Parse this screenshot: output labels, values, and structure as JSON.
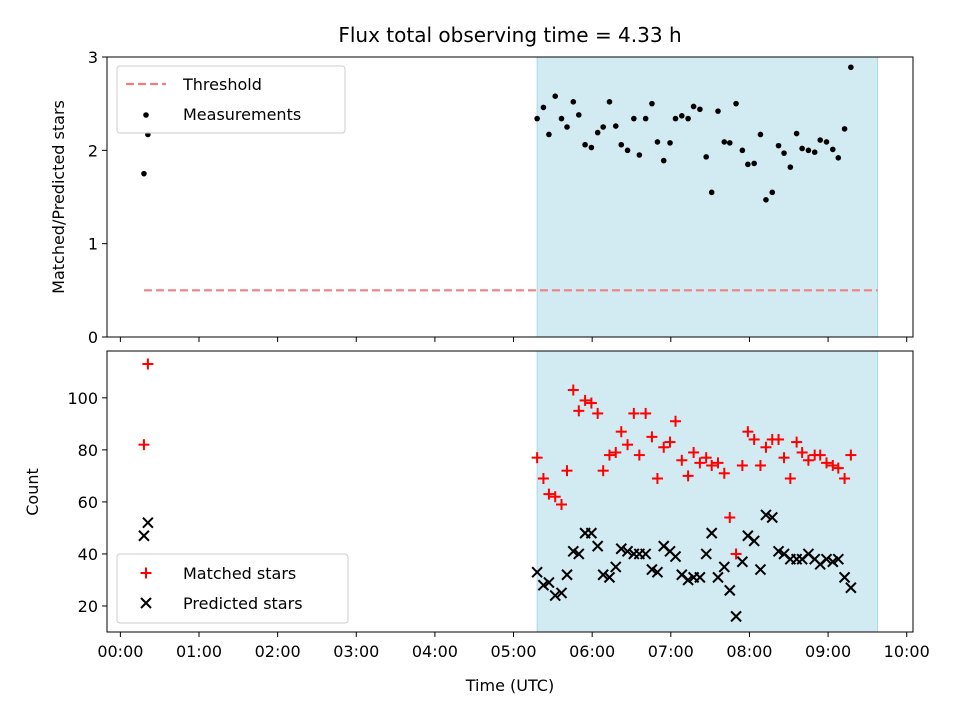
{
  "title": "Flux total observing time = 4.33 h",
  "colors": {
    "threshold": "#f08080",
    "measurement": "#000000",
    "matched": "#ff0000",
    "predicted": "#000000",
    "shade": "#add8e6"
  },
  "chart_data": [
    {
      "type": "scatter",
      "ylabel": "Matched/Predicted stars",
      "xlim": [
        -0.17,
        10.08
      ],
      "ylim": [
        0,
        3
      ],
      "yticks": [
        0,
        1,
        2,
        3
      ],
      "shaded_x_range": [
        5.3,
        9.63
      ],
      "legend": "top-left",
      "threshold": {
        "name": "Threshold",
        "y": 0.5,
        "x": [
          0.3,
          9.63
        ]
      },
      "series": [
        {
          "name": "Measurements",
          "points": [
            [
              0.3,
              1.75
            ],
            [
              0.35,
              2.17
            ],
            [
              5.3,
              2.34
            ],
            [
              5.38,
              2.46
            ],
            [
              5.45,
              2.17
            ],
            [
              5.53,
              2.58
            ],
            [
              5.61,
              2.34
            ],
            [
              5.68,
              2.25
            ],
            [
              5.76,
              2.52
            ],
            [
              5.83,
              2.38
            ],
            [
              5.91,
              2.06
            ],
            [
              5.99,
              2.03
            ],
            [
              6.07,
              2.19
            ],
            [
              6.14,
              2.25
            ],
            [
              6.22,
              2.52
            ],
            [
              6.3,
              2.26
            ],
            [
              6.37,
              2.06
            ],
            [
              6.45,
              2.0
            ],
            [
              6.53,
              2.34
            ],
            [
              6.6,
              1.95
            ],
            [
              6.68,
              2.34
            ],
            [
              6.76,
              2.5
            ],
            [
              6.83,
              2.09
            ],
            [
              6.91,
              1.89
            ],
            [
              6.99,
              2.08
            ],
            [
              7.06,
              2.34
            ],
            [
              7.14,
              2.37
            ],
            [
              7.22,
              2.34
            ],
            [
              7.29,
              2.47
            ],
            [
              7.37,
              2.44
            ],
            [
              7.45,
              1.93
            ],
            [
              7.52,
              1.55
            ],
            [
              7.6,
              2.42
            ],
            [
              7.68,
              2.09
            ],
            [
              7.75,
              2.08
            ],
            [
              7.83,
              2.5
            ],
            [
              7.91,
              2.0
            ],
            [
              7.98,
              1.85
            ],
            [
              8.06,
              1.86
            ],
            [
              8.14,
              2.17
            ],
            [
              8.21,
              1.47
            ],
            [
              8.29,
              1.55
            ],
            [
              8.37,
              2.05
            ],
            [
              8.44,
              1.97
            ],
            [
              8.52,
              1.82
            ],
            [
              8.6,
              2.18
            ],
            [
              8.67,
              2.02
            ],
            [
              8.75,
              2.0
            ],
            [
              8.83,
              1.98
            ],
            [
              8.9,
              2.11
            ],
            [
              8.98,
              2.09
            ],
            [
              9.06,
              2.01
            ],
            [
              9.13,
              1.92
            ],
            [
              9.21,
              2.23
            ],
            [
              9.29,
              2.89
            ]
          ]
        }
      ]
    },
    {
      "type": "scatter",
      "xlabel": "Time (UTC)",
      "ylabel": "Count",
      "xlim": [
        -0.17,
        10.08
      ],
      "ylim": [
        10,
        118
      ],
      "yticks": [
        20,
        40,
        60,
        80,
        100
      ],
      "xticks": [
        "00:00",
        "01:00",
        "02:00",
        "03:00",
        "04:00",
        "05:00",
        "06:00",
        "07:00",
        "08:00",
        "09:00",
        "10:00"
      ],
      "shaded_x_range": [
        5.3,
        9.63
      ],
      "legend": "bottom-left",
      "series": [
        {
          "name": "Matched stars",
          "points": [
            [
              0.3,
              82
            ],
            [
              0.35,
              113
            ],
            [
              5.3,
              77
            ],
            [
              5.38,
              69
            ],
            [
              5.45,
              63
            ],
            [
              5.53,
              62
            ],
            [
              5.61,
              59
            ],
            [
              5.68,
              72
            ],
            [
              5.76,
              103
            ],
            [
              5.83,
              95
            ],
            [
              5.91,
              99
            ],
            [
              5.99,
              98
            ],
            [
              6.07,
              94
            ],
            [
              6.14,
              72
            ],
            [
              6.22,
              78
            ],
            [
              6.3,
              79
            ],
            [
              6.37,
              87
            ],
            [
              6.45,
              82
            ],
            [
              6.53,
              94
            ],
            [
              6.6,
              78
            ],
            [
              6.68,
              94
            ],
            [
              6.76,
              85
            ],
            [
              6.83,
              69
            ],
            [
              6.91,
              81
            ],
            [
              6.99,
              83
            ],
            [
              7.06,
              91
            ],
            [
              7.14,
              76
            ],
            [
              7.22,
              70
            ],
            [
              7.29,
              79
            ],
            [
              7.37,
              75
            ],
            [
              7.45,
              77
            ],
            [
              7.52,
              74
            ],
            [
              7.6,
              75
            ],
            [
              7.68,
              71
            ],
            [
              7.75,
              54
            ],
            [
              7.83,
              40
            ],
            [
              7.91,
              74
            ],
            [
              7.98,
              87
            ],
            [
              8.06,
              84
            ],
            [
              8.14,
              74
            ],
            [
              8.21,
              81
            ],
            [
              8.29,
              84
            ],
            [
              8.37,
              84
            ],
            [
              8.44,
              77
            ],
            [
              8.52,
              69
            ],
            [
              8.6,
              83
            ],
            [
              8.67,
              79
            ],
            [
              8.75,
              76
            ],
            [
              8.83,
              78
            ],
            [
              8.9,
              78
            ],
            [
              8.98,
              75
            ],
            [
              9.06,
              74
            ],
            [
              9.13,
              73
            ],
            [
              9.21,
              69
            ],
            [
              9.29,
              78
            ]
          ]
        },
        {
          "name": "Predicted stars",
          "points": [
            [
              0.3,
              47
            ],
            [
              0.35,
              52
            ],
            [
              5.3,
              33
            ],
            [
              5.38,
              28
            ],
            [
              5.45,
              29
            ],
            [
              5.53,
              24
            ],
            [
              5.61,
              25
            ],
            [
              5.68,
              32
            ],
            [
              5.76,
              41
            ],
            [
              5.83,
              40
            ],
            [
              5.91,
              48
            ],
            [
              5.99,
              48
            ],
            [
              6.07,
              43
            ],
            [
              6.14,
              32
            ],
            [
              6.22,
              31
            ],
            [
              6.3,
              35
            ],
            [
              6.37,
              42
            ],
            [
              6.45,
              41
            ],
            [
              6.53,
              40
            ],
            [
              6.6,
              40
            ],
            [
              6.68,
              40
            ],
            [
              6.76,
              34
            ],
            [
              6.83,
              33
            ],
            [
              6.91,
              43
            ],
            [
              6.99,
              41
            ],
            [
              7.06,
              39
            ],
            [
              7.14,
              32
            ],
            [
              7.22,
              30
            ],
            [
              7.29,
              31
            ],
            [
              7.37,
              31
            ],
            [
              7.45,
              40
            ],
            [
              7.52,
              48
            ],
            [
              7.6,
              31
            ],
            [
              7.68,
              35
            ],
            [
              7.75,
              26
            ],
            [
              7.83,
              16
            ],
            [
              7.91,
              37
            ],
            [
              7.98,
              47
            ],
            [
              8.06,
              45
            ],
            [
              8.14,
              34
            ],
            [
              8.21,
              55
            ],
            [
              8.29,
              54
            ],
            [
              8.37,
              41
            ],
            [
              8.44,
              40
            ],
            [
              8.52,
              38
            ],
            [
              8.6,
              38
            ],
            [
              8.67,
              38
            ],
            [
              8.75,
              40
            ],
            [
              8.83,
              38
            ],
            [
              8.9,
              36
            ],
            [
              8.98,
              38
            ],
            [
              9.06,
              37
            ],
            [
              9.13,
              38
            ],
            [
              9.21,
              31
            ],
            [
              9.29,
              27
            ]
          ]
        }
      ]
    }
  ]
}
